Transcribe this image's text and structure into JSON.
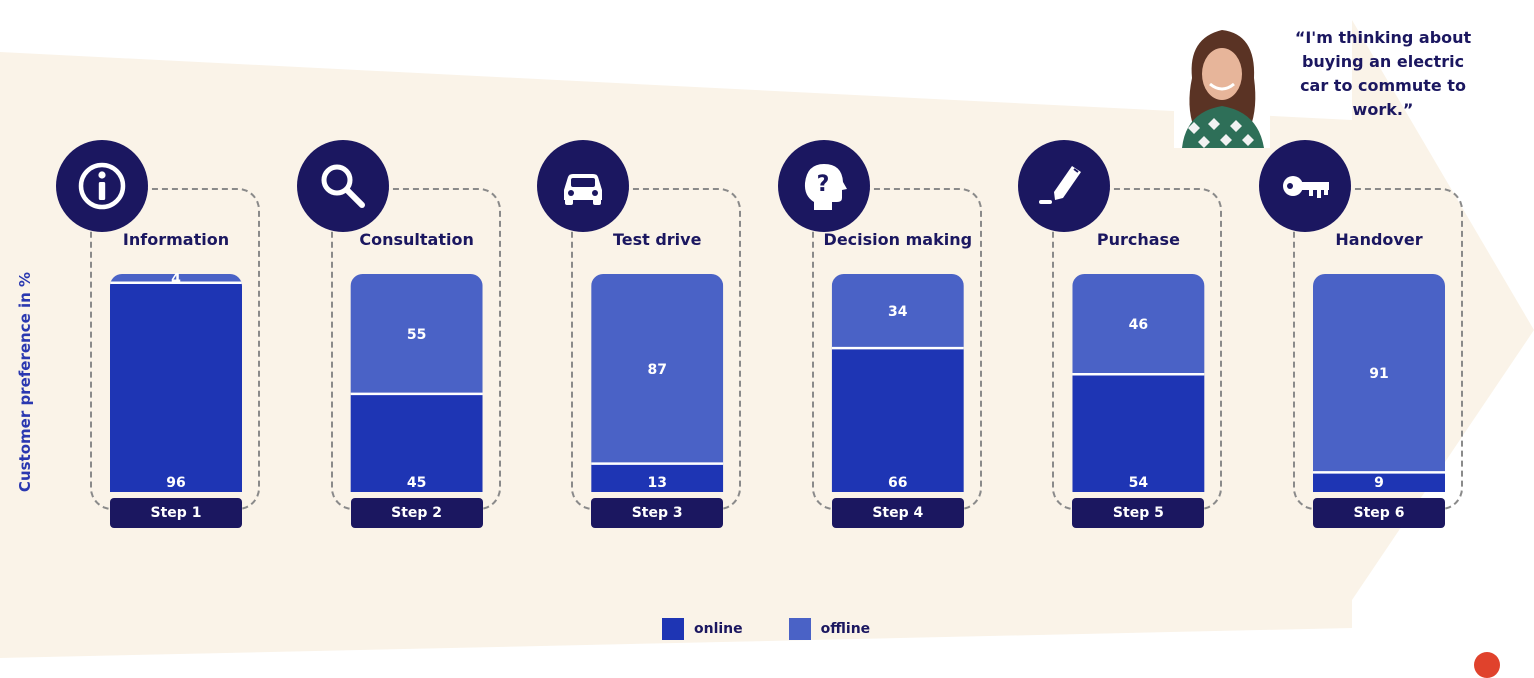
{
  "quote": "“I'm thinking about buying an electric car to commute to work.”",
  "colors": {
    "online": "#1e35b4",
    "offline": "#4a62c6",
    "navy": "#1b1760",
    "arrow": "#faf3e8"
  },
  "chart_data": {
    "type": "bar",
    "stacked": true,
    "ylabel": "Customer preference in %",
    "ylim": [
      0,
      100
    ],
    "grid": false,
    "legend_position": "bottom-center",
    "categories": [
      "Step 1",
      "Step 2",
      "Step 3",
      "Step 4",
      "Step 5",
      "Step 6"
    ],
    "step_names": [
      "Information",
      "Consultation",
      "Test drive",
      "Decision making",
      "Purchase",
      "Handover"
    ],
    "step_icons": [
      "info-icon",
      "magnifier-icon",
      "car-icon",
      "question-head-icon",
      "pen-signature-icon",
      "key-icon"
    ],
    "series": [
      {
        "name": "online",
        "values": [
          96,
          45,
          13,
          66,
          54,
          9
        ]
      },
      {
        "name": "offline",
        "values": [
          4,
          55,
          87,
          34,
          46,
          91
        ]
      }
    ]
  }
}
